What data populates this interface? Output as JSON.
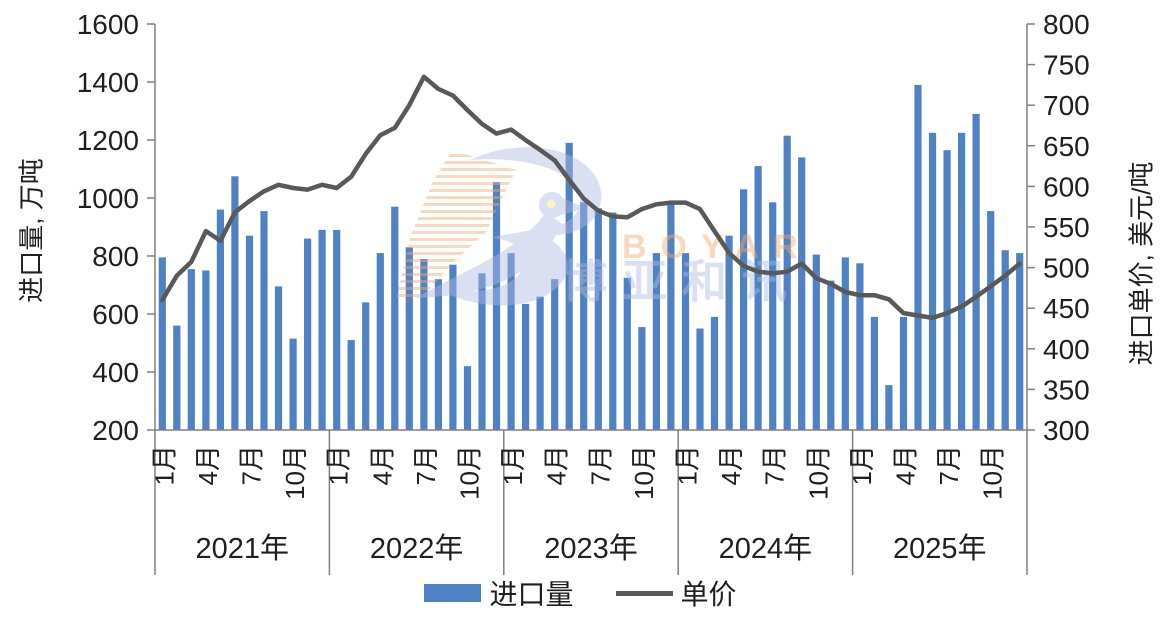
{
  "watermark": {
    "latin_text": "BOYAR",
    "cjk_text": "博亚和讯",
    "orange": "#f2a96e",
    "periwinkle": "#aeb9e4",
    "eye_yellow": "#f1e97a"
  },
  "colors": {
    "bar": "#4f82c4",
    "line": "#595959",
    "axis": "#808080",
    "text": "#1f1f1f"
  },
  "chart_data": {
    "type": "bar",
    "subtype": "bar+line dual-axis monthly time series",
    "title": "",
    "legend": {
      "bar_label": "进口量",
      "line_label": "单价"
    },
    "left_axis": {
      "label": "进口量, 万吨",
      "min": 200,
      "max": 1600,
      "step": 200,
      "ticks": [
        1600,
        1400,
        1200,
        1000,
        800,
        600,
        400,
        200
      ]
    },
    "right_axis": {
      "label": "进口单价, 美元/吨",
      "min": 300,
      "max": 800,
      "step": 50,
      "ticks": [
        800,
        750,
        700,
        650,
        600,
        550,
        500,
        450,
        400,
        350,
        300
      ]
    },
    "years": [
      "2021年",
      "2022年",
      "2023年",
      "2024年",
      "2025年"
    ],
    "month_tick_labels": [
      "1月",
      "4月",
      "7月",
      "10月"
    ],
    "month_tick_indices": [
      0,
      3,
      6,
      9
    ],
    "series": [
      {
        "name": "进口量",
        "type": "bar",
        "axis": "left",
        "values": [
          795,
          560,
          755,
          750,
          960,
          1075,
          870,
          955,
          695,
          515,
          860,
          890,
          890,
          510,
          640,
          810,
          970,
          830,
          790,
          720,
          770,
          420,
          740,
          1055,
          810,
          635,
          660,
          720,
          1190,
          985,
          965,
          950,
          725,
          555,
          810,
          985,
          810,
          550,
          590,
          870,
          1030,
          1110,
          985,
          1215,
          1140,
          805,
          715,
          795,
          775,
          590,
          355,
          590,
          1390,
          1225,
          1165,
          1225,
          1290,
          955,
          820,
          810
        ]
      },
      {
        "name": "单价",
        "type": "line",
        "axis": "right",
        "values": [
          460,
          490,
          507,
          545,
          533,
          568,
          582,
          594,
          602,
          598,
          596,
          602,
          598,
          612,
          640,
          663,
          672,
          700,
          735,
          720,
          712,
          694,
          677,
          665,
          670,
          657,
          645,
          632,
          608,
          585,
          570,
          563,
          562,
          572,
          578,
          580,
          580,
          572,
          545,
          518,
          502,
          495,
          493,
          495,
          505,
          487,
          480,
          470,
          466,
          466,
          461,
          444,
          441,
          438,
          444,
          452,
          464,
          477,
          490,
          505
        ]
      }
    ],
    "grid": false,
    "legend_position": "bottom-center"
  }
}
